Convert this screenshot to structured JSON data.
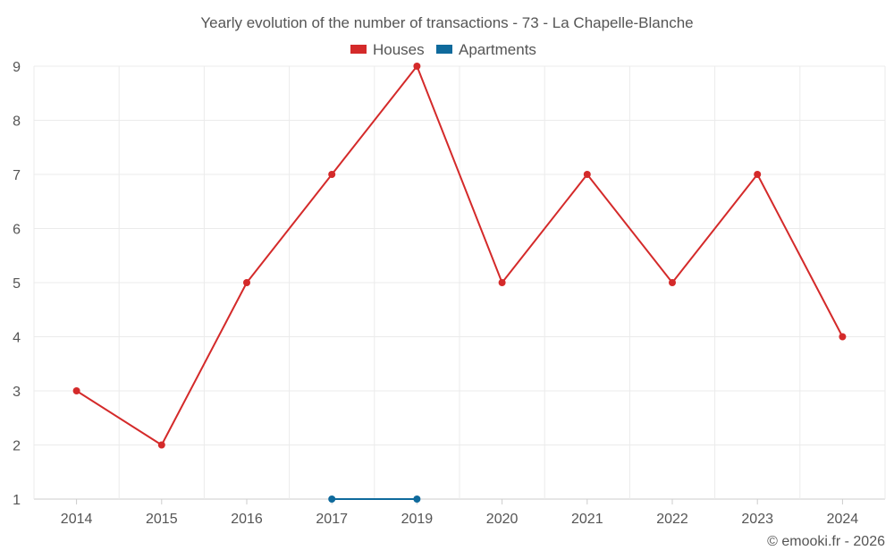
{
  "chart_data": {
    "type": "line",
    "title": "Yearly evolution of the number of transactions - 73 - La Chapelle-Blanche",
    "categories": [
      "2014",
      "2015",
      "2016",
      "2017",
      "2019",
      "2020",
      "2021",
      "2022",
      "2023",
      "2024"
    ],
    "yticks": [
      "1",
      "2",
      "3",
      "4",
      "5",
      "6",
      "7",
      "8",
      "9"
    ],
    "ylim": [
      1,
      9
    ],
    "series": [
      {
        "name": "Houses",
        "color": "#d42a2a",
        "values": [
          3,
          2,
          5,
          7,
          9,
          5,
          7,
          5,
          7,
          4
        ]
      },
      {
        "name": "Apartments",
        "color": "#0f6a9c",
        "values": [
          null,
          null,
          null,
          1,
          1,
          null,
          null,
          null,
          null,
          null
        ]
      }
    ],
    "legend": "top-center",
    "grid": true
  },
  "credit": "© emooki.fr - 2026"
}
